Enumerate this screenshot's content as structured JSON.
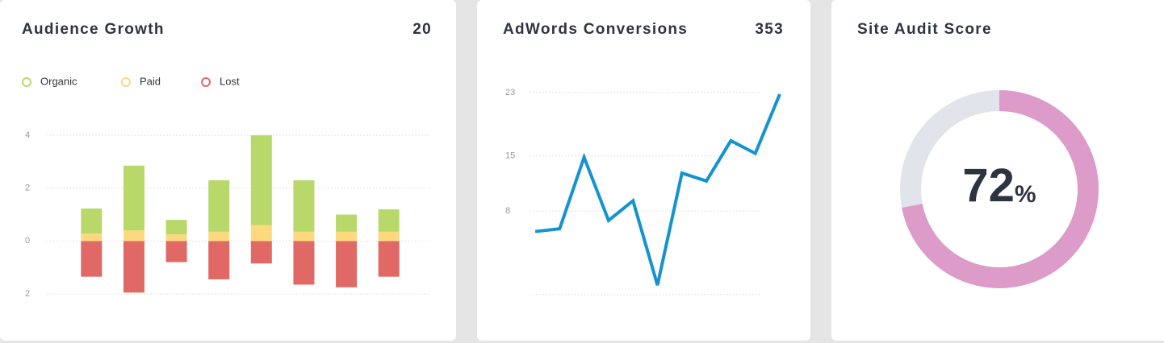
{
  "chart_data": [
    {
      "type": "bar",
      "title": "Audience Growth",
      "headline": 20,
      "categories": [
        null,
        null,
        null,
        null,
        null,
        null,
        null,
        null
      ],
      "series": [
        {
          "name": "Organic",
          "color": "#b8d96a",
          "values": [
            0.95,
            2.45,
            0.55,
            1.95,
            3.4,
            1.95,
            0.65,
            0.85
          ]
        },
        {
          "name": "Paid",
          "color": "#fcd97e",
          "values": [
            0.28,
            0.4,
            0.25,
            0.35,
            0.6,
            0.35,
            0.35,
            0.35
          ]
        },
        {
          "name": "Lost",
          "color": "#e06966",
          "values": [
            -1.35,
            -1.95,
            -0.8,
            -1.45,
            -0.85,
            -1.65,
            -1.75,
            -1.35
          ]
        }
      ],
      "ylim": [
        -2,
        4
      ],
      "yticks": [
        4,
        2,
        0,
        {
          "value": -2,
          "label": "2"
        }
      ],
      "grid": true,
      "legend": "top-left"
    },
    {
      "type": "line",
      "title": "AdWords Conversions",
      "headline": 353,
      "categories": [
        null,
        null,
        null,
        null,
        null,
        null,
        null,
        null,
        null,
        null,
        null
      ],
      "series": [
        {
          "name": "Conversions",
          "color": "#1592d0",
          "values": [
            5.4,
            5.75,
            14.8,
            6.8,
            9.3,
            -1.4,
            12.8,
            11.8,
            16.9,
            15.3,
            22.8
          ]
        }
      ],
      "ylim": [
        -2.6,
        23
      ],
      "yticks": [
        23,
        15,
        8
      ],
      "grid": true
    },
    {
      "type": "donut",
      "title": "Site Audit Score",
      "value": 72,
      "unit_label": "%",
      "color": "#dc9bc9",
      "track_color": "#e1e4ea"
    }
  ]
}
